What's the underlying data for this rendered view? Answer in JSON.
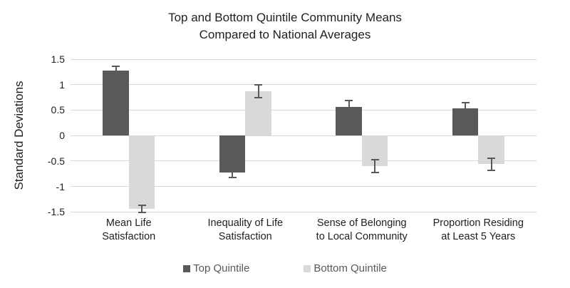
{
  "title": {
    "line1": "Top and Bottom Quintile Community Means",
    "line2": "Compared to National Averages"
  },
  "y_axis": {
    "title": "Standard Deviations",
    "tick_labels": [
      "1.5",
      "1",
      "0.5",
      "0",
      "-0.5",
      "-1",
      "-1.5"
    ],
    "tick_values": [
      1.5,
      1,
      0.5,
      0,
      -0.5,
      -1,
      -1.5
    ]
  },
  "legend": {
    "items": [
      {
        "label": "Top Quintile",
        "color": "#595959"
      },
      {
        "label": "Bottom Quintile",
        "color": "#d9d9d9"
      }
    ]
  },
  "colors": {
    "top_quintile": "#595959",
    "bottom_quintile": "#d9d9d9",
    "error_bar": "#595959",
    "gridline": "#d8d8d8",
    "text": "#1f1f1f",
    "legend_text": "#595959"
  },
  "chart_data": {
    "type": "bar",
    "title": "Top and Bottom Quintile Community Means Compared to National Averages",
    "ylabel": "Standard Deviations",
    "ylim": [
      -1.5,
      1.5
    ],
    "grid": true,
    "legend_position": "bottom",
    "categories": [
      "Mean Life Satisfaction",
      "Inequality of Life Satisfaction",
      "Sense of Belonging to Local Community",
      "Proportion Residing at Least 5 Years"
    ],
    "category_lines": [
      [
        "Mean Life",
        "Satisfaction"
      ],
      [
        "Inequality of Life",
        "Satisfaction"
      ],
      [
        "Sense of Belonging",
        "to Local Community"
      ],
      [
        "Proportion Residing",
        "at Least 5 Years"
      ]
    ],
    "series": [
      {
        "name": "Top Quintile",
        "color": "#595959",
        "values": [
          1.28,
          -0.72,
          0.56,
          0.53
        ],
        "errors": [
          0.08,
          0.11,
          0.13,
          0.12
        ]
      },
      {
        "name": "Bottom Quintile",
        "color": "#d9d9d9",
        "values": [
          -1.44,
          0.87,
          -0.6,
          -0.56
        ],
        "errors": [
          0.07,
          0.12,
          0.12,
          0.12
        ]
      }
    ]
  }
}
